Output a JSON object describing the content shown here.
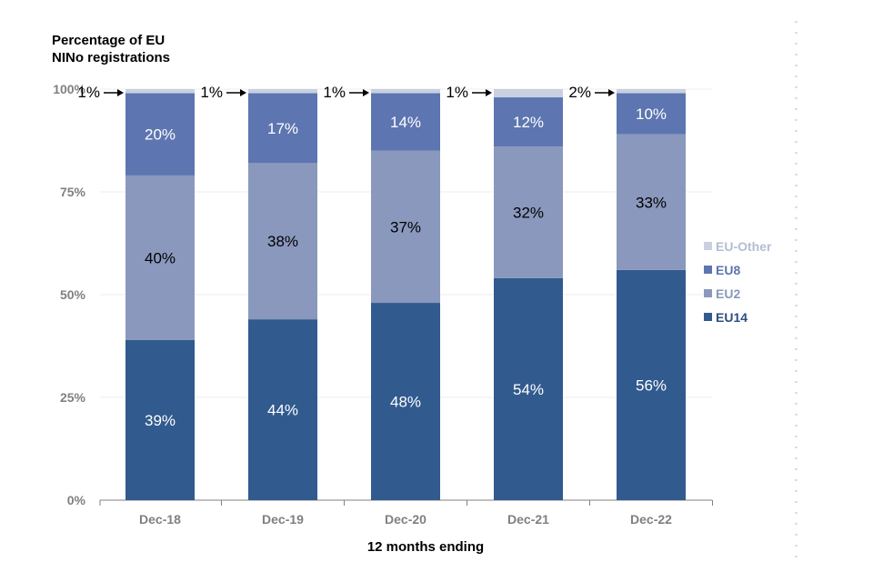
{
  "chart_data": {
    "type": "bar",
    "stacked": true,
    "ylabel": "Percentage of EU NINo registrations",
    "ylabel_lines": [
      "Percentage of EU",
      "NINo registrations"
    ],
    "xlabel": "12 months ending",
    "categories": [
      "Dec-18",
      "Dec-19",
      "Dec-20",
      "Dec-21",
      "Dec-22"
    ],
    "ylim": [
      0,
      100
    ],
    "yticks": [
      0,
      25,
      50,
      75,
      100
    ],
    "ytick_labels": [
      "0%",
      "25%",
      "50%",
      "75%",
      "100%"
    ],
    "grid": true,
    "legend_position": "right",
    "series": [
      {
        "name": "EU14",
        "color": "#315A8E",
        "values": [
          39,
          44,
          48,
          54,
          56
        ],
        "labels": [
          "39%",
          "44%",
          "48%",
          "54%",
          "56%"
        ],
        "label_color": "#ffffff"
      },
      {
        "name": "EU2",
        "color": "#8A98BD",
        "values": [
          40,
          38,
          37,
          32,
          33
        ],
        "labels": [
          "40%",
          "38%",
          "37%",
          "32%",
          "33%"
        ],
        "label_color": "#000000"
      },
      {
        "name": "EU8",
        "color": "#5D75B0",
        "values": [
          20,
          17,
          14,
          12,
          10
        ],
        "labels": [
          "20%",
          "17%",
          "14%",
          "12%",
          "10%"
        ],
        "label_color": "#ffffff"
      },
      {
        "name": "EU-Other",
        "color": "#C9D0E0",
        "values": [
          1,
          1,
          1,
          1,
          2
        ],
        "labels": [
          "1%",
          "1%",
          "1%",
          "1%",
          "2%"
        ],
        "label_color": "#000000"
      }
    ],
    "legend_order": [
      "EU-Other",
      "EU8",
      "EU2",
      "EU14"
    ],
    "legend_text_colors": {
      "EU-Other": "#B4BDD3",
      "EU8": "#5D75B0",
      "EU2": "#8A98BD",
      "EU14": "#2C4F7C"
    }
  }
}
